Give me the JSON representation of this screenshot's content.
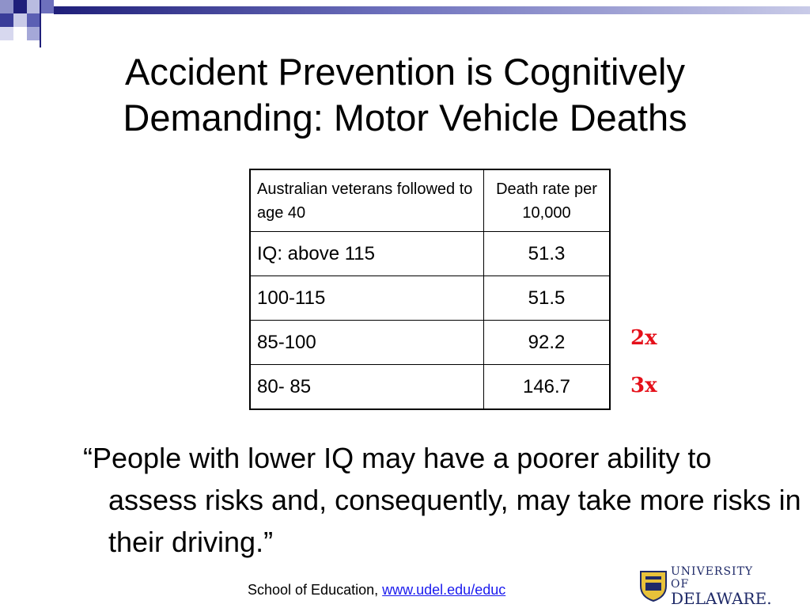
{
  "slide": {
    "title": "Accident Prevention is Cognitively Demanding: Motor Vehicle Deaths"
  },
  "table": {
    "header": [
      "Australian veterans followed to age 40",
      "Death rate per 10,000"
    ],
    "rows": [
      {
        "iq": "IQ: above 115",
        "rate": "51.3"
      },
      {
        "iq": "100-115",
        "rate": "51.5"
      },
      {
        "iq": "85-100",
        "rate": "92.2"
      },
      {
        "iq": "80- 85",
        "rate": "146.7"
      }
    ]
  },
  "multipliers": [
    "2x",
    "3x"
  ],
  "quote": "“People with lower IQ may have a poorer ability to assess risks and, consequently, may take more risks in their driving.”",
  "footer": {
    "prefix": "School of Education, ",
    "link": "www.udel.edu/educ"
  },
  "logo": {
    "line1": "UNIVERSITY OF",
    "line2": "DELAWARE."
  },
  "colors": {
    "accent_red": "#e5101a",
    "navy": "#1f1f7a",
    "link": "#1a1aee"
  }
}
